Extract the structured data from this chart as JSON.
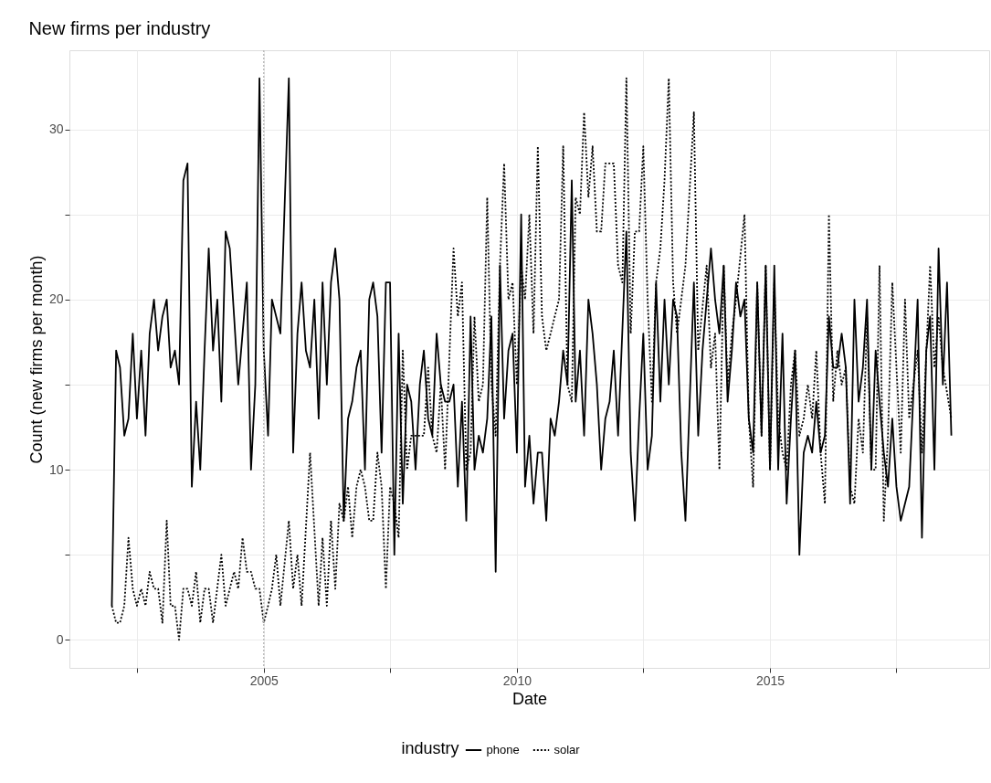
{
  "chart_data": {
    "type": "line",
    "title": "New firms per industry",
    "xlabel": "Date",
    "ylabel": "Count (new firms per month)",
    "legend_title": "industry",
    "legend": "bottom",
    "grid": true,
    "xlim": [
      "2001-03",
      "2019-05"
    ],
    "xticks": [
      {
        "value": "2002-07",
        "label": null
      },
      "2005",
      {
        "value": "2007-07",
        "label": null
      },
      "2010",
      {
        "value": "2012-07",
        "label": null
      },
      "2015",
      {
        "value": "2017-07",
        "label": null
      }
    ],
    "ylim": [
      -1.65,
      34.65
    ],
    "yticks": [
      0,
      {
        "value": 5,
        "label": null
      },
      10,
      {
        "value": 15,
        "label": null
      },
      20,
      {
        "value": 25,
        "label": null
      },
      30
    ],
    "ref_lines": [
      {
        "axis": "x",
        "value": "2005-01",
        "label": null,
        "color": "#bdbdbd",
        "line_style": "dotted"
      }
    ],
    "series": [
      {
        "name": "phone",
        "color": "#000000",
        "line_style": "solid",
        "x": [
          "2002-01",
          "2002-02",
          "2002-03",
          "2002-04",
          "2002-05",
          "2002-06",
          "2002-07",
          "2002-08",
          "2002-09",
          "2002-10",
          "2002-11",
          "2002-12",
          "2003-01",
          "2003-02",
          "2003-03",
          "2003-04",
          "2003-05",
          "2003-06",
          "2003-07",
          "2003-08",
          "2003-09",
          "2003-10",
          "2003-11",
          "2003-12",
          "2004-01",
          "2004-02",
          "2004-03",
          "2004-04",
          "2004-05",
          "2004-06",
          "2004-07",
          "2004-08",
          "2004-09",
          "2004-10",
          "2004-11",
          "2004-12",
          "2005-01",
          "2005-02",
          "2005-03",
          "2005-05",
          "2005-07",
          "2005-08",
          "2005-09",
          "2005-10",
          "2005-11",
          "2005-12",
          "2006-01",
          "2006-02",
          "2006-03",
          "2006-04",
          "2006-05",
          "2006-06",
          "2006-07",
          "2006-08",
          "2006-09",
          "2006-10",
          "2006-11",
          "2006-12",
          "2007-01",
          "2007-02",
          "2007-03",
          "2007-04",
          "2007-05",
          "2007-06",
          "2007-07",
          "2007-08",
          "2007-09",
          "2007-10",
          "2007-11",
          "2007-12",
          "2008-01",
          "2008-02",
          "2008-03",
          "2008-04",
          "2008-05",
          "2008-06",
          "2008-07",
          "2008-08",
          "2008-09",
          "2008-10",
          "2008-11",
          "2008-12",
          "2009-01",
          "2009-02",
          "2009-03",
          "2009-04",
          "2009-05",
          "2009-06",
          "2009-07",
          "2009-08",
          "2009-09",
          "2009-10",
          "2009-11",
          "2009-12",
          "2010-01",
          "2010-02",
          "2010-03",
          "2010-04",
          "2010-05",
          "2010-06",
          "2010-07",
          "2010-08",
          "2010-09",
          "2010-10",
          "2010-11",
          "2010-12",
          "2011-01",
          "2011-02",
          "2011-03",
          "2011-04",
          "2011-05",
          "2011-06",
          "2011-07",
          "2011-08",
          "2011-09",
          "2011-10",
          "2011-11",
          "2011-12",
          "2012-01",
          "2012-03",
          "2012-04",
          "2012-05",
          "2012-06",
          "2012-07",
          "2012-08",
          "2012-09",
          "2012-10",
          "2012-11",
          "2012-12",
          "2013-01",
          "2013-02",
          "2013-03",
          "2013-04",
          "2013-05",
          "2013-07",
          "2013-08",
          "2013-09",
          "2013-11",
          "2013-12",
          "2014-01",
          "2014-02",
          "2014-03",
          "2014-04",
          "2014-05",
          "2014-06",
          "2014-07",
          "2014-08",
          "2014-09",
          "2014-10",
          "2014-11",
          "2014-12",
          "2015-01",
          "2015-02",
          "2015-03",
          "2015-04",
          "2015-05",
          "2015-06",
          "2015-07",
          "2015-08",
          "2015-09",
          "2015-10",
          "2015-11",
          "2015-12",
          "2016-01",
          "2016-02",
          "2016-03",
          "2016-04",
          "2016-05",
          "2016-06",
          "2016-07",
          "2016-08",
          "2016-09",
          "2016-10",
          "2016-11",
          "2016-12",
          "2017-01",
          "2017-02",
          "2017-03",
          "2017-04",
          "2017-05",
          "2017-06",
          "2017-07",
          "2017-08",
          "2017-10",
          "2017-12",
          "2018-01",
          "2018-02",
          "2018-03",
          "2018-04",
          "2018-05",
          "2018-06",
          "2018-07",
          "2018-08"
        ],
        "values": [
          2,
          17,
          16,
          12,
          13,
          18,
          13,
          17,
          12,
          18,
          20,
          17,
          19,
          20,
          16,
          17,
          15,
          27,
          28,
          9,
          14,
          10,
          17,
          23,
          17,
          20,
          14,
          24,
          23,
          19,
          15,
          18,
          21,
          10,
          15,
          33,
          17,
          12,
          20,
          18,
          33,
          11,
          18,
          21,
          17,
          16,
          20,
          13,
          21,
          15,
          21,
          23,
          20,
          7,
          13,
          14,
          16,
          17,
          10,
          20,
          21,
          19,
          11,
          21,
          21,
          5,
          18,
          8,
          15,
          14,
          10,
          15,
          17,
          13,
          12,
          18,
          15,
          14,
          14,
          15,
          9,
          14,
          7,
          19,
          10,
          12,
          11,
          13,
          19,
          4,
          22,
          13,
          17,
          18,
          11,
          25,
          9,
          12,
          8,
          11,
          11,
          7,
          13,
          12,
          14,
          17,
          15,
          27,
          14,
          17,
          12,
          20,
          18,
          15,
          10,
          13,
          14,
          17,
          12,
          24,
          11,
          7,
          13,
          18,
          10,
          12,
          21,
          14,
          20,
          15,
          20,
          19,
          11,
          7,
          21,
          12,
          17,
          23,
          20,
          18,
          22,
          14,
          17,
          21,
          19,
          20,
          13,
          11,
          21,
          12,
          22,
          10,
          22,
          10,
          18,
          8,
          13,
          17,
          5,
          11,
          12,
          11,
          14,
          11,
          12,
          19,
          16,
          16,
          18,
          16,
          8,
          20,
          14,
          16,
          20,
          10,
          17,
          14,
          11,
          9,
          13,
          9,
          7,
          9,
          20,
          6,
          17,
          19,
          10,
          23,
          15,
          21,
          12
        ]
      },
      {
        "name": "solar",
        "color": "#000000",
        "line_style": "dotted",
        "x": [
          "2002-01",
          "2002-02",
          "2002-03",
          "2002-04",
          "2002-05",
          "2002-06",
          "2002-07",
          "2002-08",
          "2002-09",
          "2002-10",
          "2002-11",
          "2002-12",
          "2003-01",
          "2003-02",
          "2003-03",
          "2003-04",
          "2003-05",
          "2003-06",
          "2003-07",
          "2003-08",
          "2003-09",
          "2003-10",
          "2003-11",
          "2003-12",
          "2004-01",
          "2004-03",
          "2004-04",
          "2004-05",
          "2004-06",
          "2004-07",
          "2004-08",
          "2004-09",
          "2004-10",
          "2004-11",
          "2004-12",
          "2005-01",
          "2005-02",
          "2005-03",
          "2005-04",
          "2005-05",
          "2005-07",
          "2005-08",
          "2005-09",
          "2005-10",
          "2005-12",
          "2006-02",
          "2006-03",
          "2006-04",
          "2006-05",
          "2006-06",
          "2006-07",
          "2006-08",
          "2006-09",
          "2006-10",
          "2006-11",
          "2006-12",
          "2007-01",
          "2007-02",
          "2007-03",
          "2007-04",
          "2007-05",
          "2007-06",
          "2007-07",
          "2007-08",
          "2007-09",
          "2007-10",
          "2007-11",
          "2007-12",
          "2008-01",
          "2008-02",
          "2008-03",
          "2008-04",
          "2008-05",
          "2008-06",
          "2008-07",
          "2008-08",
          "2008-10",
          "2008-11",
          "2008-12",
          "2009-01",
          "2009-02",
          "2009-03",
          "2009-04",
          "2009-05",
          "2009-06",
          "2009-07",
          "2009-08",
          "2009-09",
          "2009-10",
          "2009-11",
          "2009-12",
          "2010-01",
          "2010-02",
          "2010-03",
          "2010-04",
          "2010-05",
          "2010-06",
          "2010-07",
          "2010-08",
          "2010-09",
          "2010-10",
          "2010-11",
          "2010-12",
          "2011-01",
          "2011-02",
          "2011-03",
          "2011-04",
          "2011-05",
          "2011-06",
          "2011-07",
          "2011-08",
          "2011-09",
          "2011-10",
          "2011-11",
          "2011-12",
          "2012-01",
          "2012-02",
          "2012-03",
          "2012-04",
          "2012-05",
          "2012-06",
          "2012-07",
          "2012-08",
          "2012-09",
          "2012-10",
          "2012-11",
          "2012-12",
          "2013-01",
          "2013-02",
          "2013-03",
          "2013-04",
          "2013-05",
          "2013-07",
          "2013-08",
          "2013-10",
          "2013-11",
          "2013-12",
          "2014-01",
          "2014-02",
          "2014-03",
          "2014-04",
          "2014-05",
          "2014-07",
          "2014-08",
          "2014-09",
          "2014-10",
          "2014-11",
          "2014-12",
          "2015-01",
          "2015-02",
          "2015-03",
          "2015-04",
          "2015-05",
          "2015-06",
          "2015-07",
          "2015-08",
          "2015-09",
          "2015-10",
          "2015-11",
          "2015-12",
          "2016-01",
          "2016-02",
          "2016-03",
          "2016-04",
          "2016-05",
          "2016-06",
          "2016-07",
          "2016-08",
          "2016-09",
          "2016-10",
          "2016-11",
          "2016-12",
          "2017-01",
          "2017-02",
          "2017-03",
          "2017-04",
          "2017-05",
          "2017-06",
          "2017-07",
          "2017-08",
          "2017-09",
          "2017-10",
          "2017-12",
          "2018-01",
          "2018-03",
          "2018-04",
          "2018-05",
          "2018-06",
          "2018-08"
        ],
        "values": [
          2,
          1,
          1,
          2,
          6,
          3,
          2,
          3,
          2,
          4,
          3,
          3,
          1,
          7,
          2,
          2,
          0,
          3,
          3,
          2,
          4,
          1,
          3,
          3,
          1,
          5,
          2,
          3,
          4,
          3,
          6,
          4,
          4,
          3,
          3,
          1,
          2,
          3,
          5,
          2,
          7,
          3,
          5,
          2,
          11,
          2,
          6,
          2,
          7,
          3,
          8,
          7,
          9,
          6,
          9,
          10,
          9,
          7,
          7,
          11,
          9,
          3,
          9,
          8,
          6,
          17,
          10,
          12,
          12,
          12,
          12,
          16,
          12,
          11,
          15,
          10,
          23,
          19,
          21,
          10,
          11,
          19,
          14,
          15,
          26,
          15,
          12,
          22,
          28,
          20,
          21,
          15,
          22,
          20,
          25,
          18,
          29,
          19,
          17,
          18,
          19,
          20,
          29,
          15,
          14,
          26,
          25,
          31,
          26,
          29,
          24,
          24,
          28,
          28,
          28,
          22,
          21,
          33,
          18,
          24,
          24,
          29,
          20,
          14,
          21,
          23,
          27,
          33,
          21,
          18,
          20,
          22,
          31,
          17,
          22,
          16,
          18,
          10,
          22,
          15,
          18,
          20,
          25,
          13,
          9,
          21,
          12,
          22,
          10,
          21,
          13,
          11,
          10,
          15,
          17,
          12,
          13,
          15,
          13,
          17,
          11,
          8,
          25,
          14,
          17,
          15,
          16,
          9,
          8,
          13,
          11,
          19,
          10,
          10,
          22,
          7,
          12,
          21,
          16,
          11,
          20,
          13,
          17,
          11,
          22,
          16,
          19,
          16,
          13
        ]
      }
    ]
  }
}
